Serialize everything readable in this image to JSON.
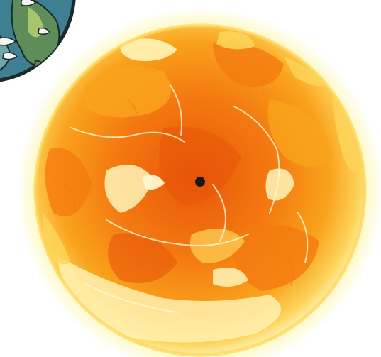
{
  "scene": {
    "background": "#ffffff",
    "sun": {
      "colors": {
        "core": "#e8560a",
        "mid": "#f47a10",
        "warm": "#f9a21c",
        "bright": "#fdd45a",
        "pale": "#fff4b8",
        "glow": "#fbf27a",
        "line": "#fff7cf"
      }
    },
    "planet": {
      "colors": {
        "ocean": "#3f7f92",
        "ocean_light": "#6fa7ac",
        "land": "#5f8d5a",
        "land_light": "#a7c46e",
        "outline": "#1a2b2a",
        "cloud": "#f4f6ee"
      }
    },
    "center_marker": {
      "color": "#1a1a1a"
    }
  }
}
